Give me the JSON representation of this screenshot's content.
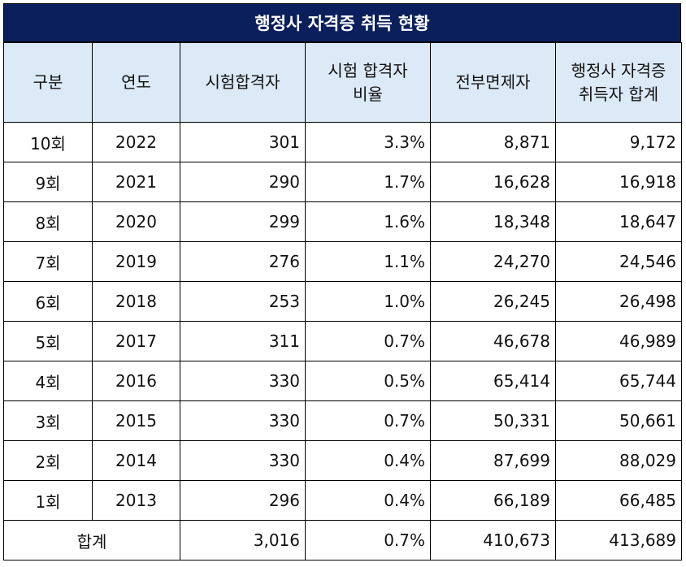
{
  "title": "행정사 자격증 취득 현황",
  "headers": {
    "col1": "구분",
    "col2": "연도",
    "col3": "시험합격자",
    "col4_line1": "시험 합격자",
    "col4_line2": "비율",
    "col5": "전부면제자",
    "col6_line1": "행정사 자격증",
    "col6_line2": "취득자 합계"
  },
  "rows": [
    {
      "round": "10회",
      "year": "2022",
      "passers": "301",
      "ratio": "3.3%",
      "exempt": "8,871",
      "total": "9,172"
    },
    {
      "round": "9회",
      "year": "2021",
      "passers": "290",
      "ratio": "1.7%",
      "exempt": "16,628",
      "total": "16,918"
    },
    {
      "round": "8회",
      "year": "2020",
      "passers": "299",
      "ratio": "1.6%",
      "exempt": "18,348",
      "total": "18,647"
    },
    {
      "round": "7회",
      "year": "2019",
      "passers": "276",
      "ratio": "1.1%",
      "exempt": "24,270",
      "total": "24,546"
    },
    {
      "round": "6회",
      "year": "2018",
      "passers": "253",
      "ratio": "1.0%",
      "exempt": "26,245",
      "total": "26,498"
    },
    {
      "round": "5회",
      "year": "2017",
      "passers": "311",
      "ratio": "0.7%",
      "exempt": "46,678",
      "total": "46,989"
    },
    {
      "round": "4회",
      "year": "2016",
      "passers": "330",
      "ratio": "0.5%",
      "exempt": "65,414",
      "total": "65,744"
    },
    {
      "round": "3회",
      "year": "2015",
      "passers": "330",
      "ratio": "0.7%",
      "exempt": "50,331",
      "total": "50,661"
    },
    {
      "round": "2회",
      "year": "2014",
      "passers": "330",
      "ratio": "0.4%",
      "exempt": "87,699",
      "total": "88,029"
    },
    {
      "round": "1회",
      "year": "2013",
      "passers": "296",
      "ratio": "0.4%",
      "exempt": "66,189",
      "total": "66,485"
    }
  ],
  "footer": {
    "label": "합계",
    "passers": "3,016",
    "ratio": "0.7%",
    "exempt": "410,673",
    "total": "413,689"
  },
  "colors": {
    "title_bg": "#0b1f5c",
    "header_bg": "#dce9f7"
  }
}
